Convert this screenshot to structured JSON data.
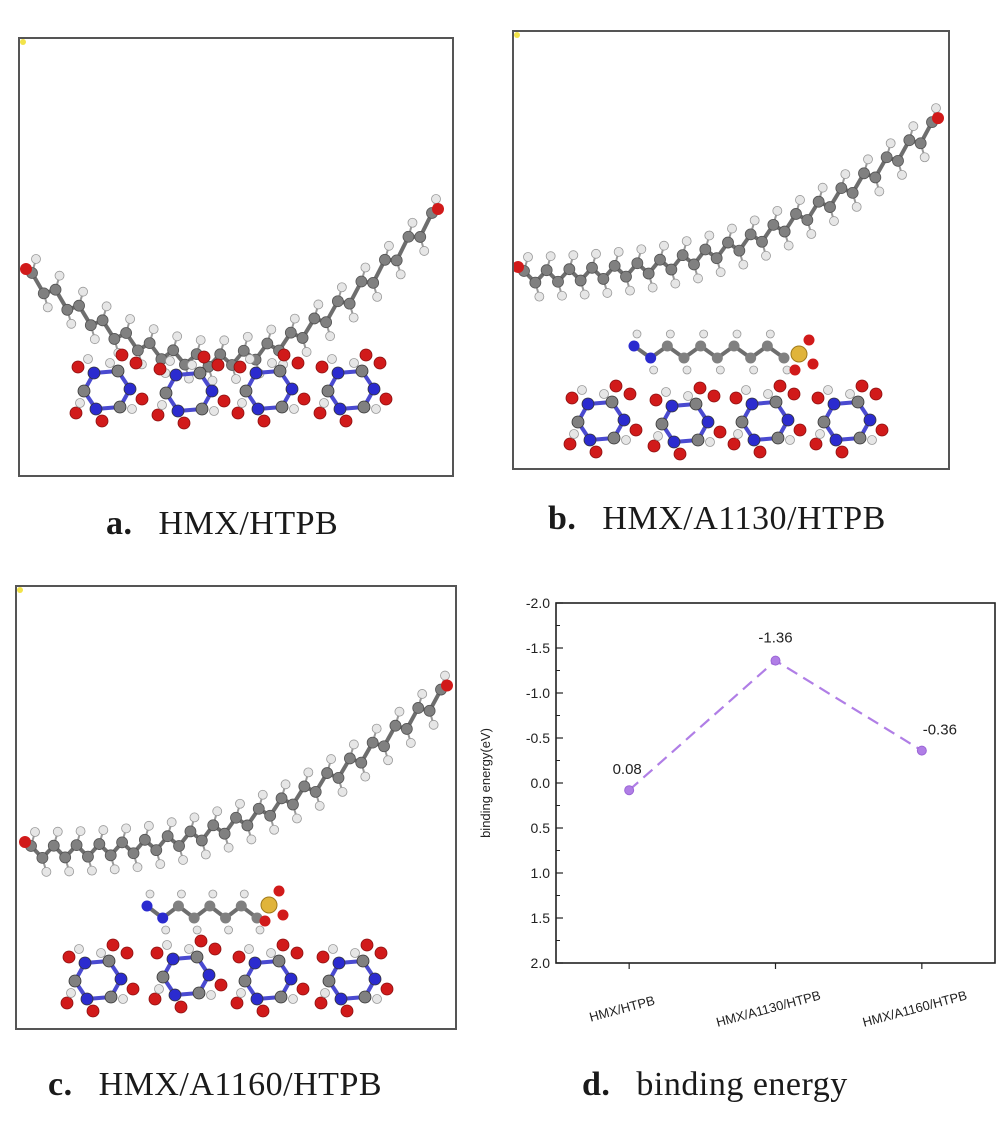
{
  "panels": [
    {
      "letter": "a.",
      "title": "HMX/HTPB"
    },
    {
      "letter": "b.",
      "title": "HMX/A1130/HTPB"
    },
    {
      "letter": "c.",
      "title": "HMX/A1160/HTPB"
    },
    {
      "letter": "d.",
      "title": "binding energy"
    }
  ],
  "colors": {
    "carbon": "#808080",
    "hydrogen": "#e6e6e6",
    "nitrogen": "#2b2bcf",
    "oxygen": "#d11a1a",
    "silicon": "#e0b43a",
    "line": "#b07ee6"
  },
  "chart_data": {
    "type": "line",
    "categories": [
      "HMX/HTPB",
      "HMX/A1130/HTPB",
      "HMX/A1160/HTPB"
    ],
    "values": [
      0.08,
      -1.36,
      -0.36
    ],
    "data_labels": [
      "0.08",
      "-1.36",
      "-0.36"
    ],
    "ylabel": "binding energy(eV)",
    "xlabel": "",
    "ylim": [
      2.0,
      -2.0
    ],
    "y_inverted": true,
    "yticks": [
      "-2.0",
      "-1.5",
      "-1.0",
      "-0.5",
      "0.0",
      "0.5",
      "1.0",
      "1.5",
      "2.0"
    ],
    "line_style": "dashed",
    "grid": false,
    "legend": "none"
  }
}
